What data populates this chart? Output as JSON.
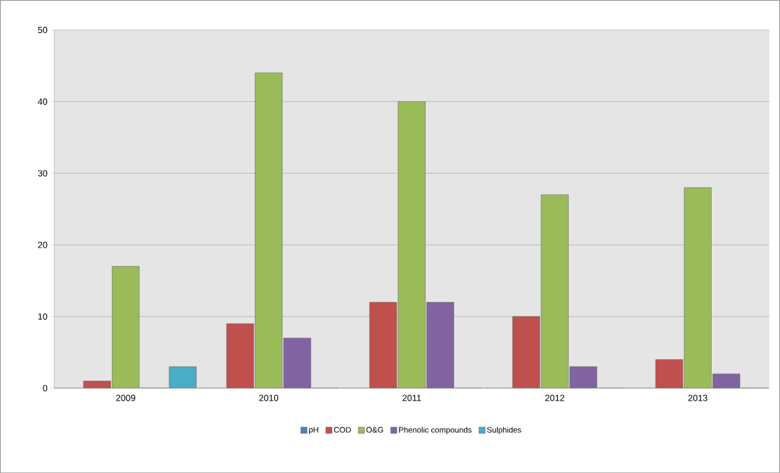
{
  "chart_data": {
    "type": "bar",
    "categories": [
      "2009",
      "2010",
      "2011",
      "2012",
      "2013"
    ],
    "series": [
      {
        "name": "pH",
        "color": "#4f81bd",
        "values": [
          0,
          0,
          0,
          0,
          0
        ]
      },
      {
        "name": "COD",
        "color": "#c0504d",
        "values": [
          1,
          9,
          12,
          10,
          4
        ]
      },
      {
        "name": "O&G",
        "color": "#9bbb59",
        "values": [
          17,
          44,
          40,
          27,
          28
        ]
      },
      {
        "name": "Phenolic compounds",
        "color": "#8064a2",
        "values": [
          0,
          7,
          12,
          3,
          2
        ]
      },
      {
        "name": "Sulphides",
        "color": "#4bacc6",
        "values": [
          3,
          0,
          0,
          0,
          0
        ]
      }
    ],
    "ylim": [
      0,
      50
    ],
    "yticks": [
      0,
      10,
      20,
      30,
      40,
      50
    ],
    "grid": "y",
    "legend": "bottom"
  }
}
